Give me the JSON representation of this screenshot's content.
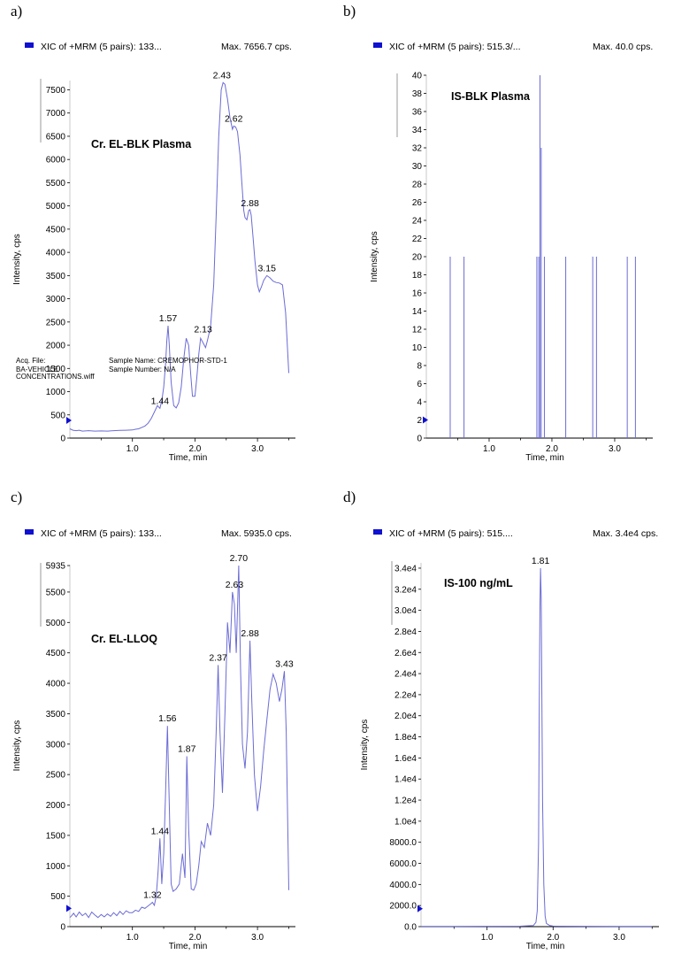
{
  "chart_data": [
    {
      "panel": "a)",
      "type": "line",
      "header_left": "XIC of +MRM (5 pairs): 133...",
      "header_right": "Max. 7656.7 cps.",
      "annotation": "Cr. EL-BLK Plasma",
      "xlabel": "Time, min",
      "ylabel": "Intensity, cps",
      "xlim": [
        0,
        3.55
      ],
      "ylim": [
        0,
        7700
      ],
      "xticks": [
        1.0,
        2.0,
        3.0
      ],
      "xtick_labels": [
        "1.0",
        "2.0",
        "3.0"
      ],
      "yticks": [
        0,
        500,
        1000,
        1500,
        2000,
        2500,
        3000,
        3500,
        4000,
        4500,
        5000,
        5500,
        6000,
        6500,
        7000,
        7500
      ],
      "ytick_labels": [
        "0",
        "500",
        "1000",
        "1500",
        "2000",
        "2500",
        "3000",
        "3500",
        "4000",
        "4500",
        "5000",
        "5500",
        "6000",
        "6500",
        "7000",
        "7500"
      ],
      "color": "#6b6bd6",
      "marker_y": 380,
      "metadata": [
        "Acq. File:",
        "BA-VEHICLE",
        "CONCENTRATIONS.wiff",
        "Sample Name: CREMOPHOR-STD-1",
        "Sample Number: N/A"
      ],
      "peak_labels": [
        {
          "x": 1.44,
          "y": 640,
          "label": "1.44"
        },
        {
          "x": 1.57,
          "y": 2420,
          "label": "1.57"
        },
        {
          "x": 2.13,
          "y": 2180,
          "label": "2.13"
        },
        {
          "x": 2.43,
          "y": 7657,
          "label": "2.43"
        },
        {
          "x": 2.62,
          "y": 6720,
          "label": "2.62"
        },
        {
          "x": 2.88,
          "y": 4900,
          "label": "2.88"
        },
        {
          "x": 3.15,
          "y": 3500,
          "label": "3.15"
        }
      ],
      "series": [
        {
          "x": [
            0.0,
            0.05,
            0.1,
            0.15,
            0.2,
            0.3,
            0.4,
            0.5,
            0.6,
            0.7,
            0.8,
            0.9,
            1.0,
            1.05,
            1.1,
            1.15,
            1.2,
            1.25,
            1.3,
            1.35,
            1.4,
            1.44,
            1.47,
            1.5,
            1.53,
            1.55,
            1.57,
            1.59,
            1.62,
            1.66,
            1.7,
            1.74,
            1.78,
            1.82,
            1.86,
            1.9,
            1.93,
            1.96,
            2.0,
            2.03,
            2.06,
            2.09,
            2.13,
            2.17,
            2.2,
            2.25,
            2.3,
            2.34,
            2.38,
            2.42,
            2.45,
            2.48,
            2.52,
            2.56,
            2.6,
            2.62,
            2.65,
            2.68,
            2.72,
            2.75,
            2.78,
            2.8,
            2.83,
            2.86,
            2.88,
            2.9,
            2.93,
            2.96,
            3.0,
            3.03,
            3.06,
            3.1,
            3.15,
            3.2,
            3.25,
            3.3,
            3.35,
            3.4,
            3.45,
            3.5
          ],
          "y": [
            200,
            170,
            160,
            170,
            150,
            160,
            150,
            155,
            150,
            160,
            165,
            170,
            175,
            190,
            200,
            230,
            260,
            320,
            420,
            560,
            700,
            640,
            800,
            1100,
            1600,
            2100,
            2420,
            2000,
            1200,
            700,
            650,
            760,
            1100,
            1700,
            2150,
            2000,
            1400,
            900,
            900,
            1300,
            1800,
            2150,
            2050,
            1950,
            2100,
            2400,
            3300,
            4800,
            6500,
            7500,
            7657,
            7620,
            7300,
            6900,
            6650,
            6720,
            6700,
            6600,
            6100,
            5500,
            4900,
            4750,
            4700,
            4900,
            4920,
            4800,
            4300,
            3800,
            3300,
            3150,
            3250,
            3400,
            3500,
            3450,
            3380,
            3350,
            3340,
            3300,
            2700,
            1400
          ]
        }
      ]
    },
    {
      "panel": "b)",
      "type": "line",
      "header_left": "XIC of +MRM (5 pairs): 515.3/...",
      "header_right": "Max. 40.0 cps.",
      "annotation": "IS-BLK Plasma",
      "xlabel": "Time, min",
      "ylabel": "Intensity, cps",
      "xlim": [
        0,
        3.55
      ],
      "ylim": [
        0,
        40
      ],
      "xticks": [
        1.0,
        2.0,
        3.0
      ],
      "xtick_labels": [
        "1.0",
        "2.0",
        "3.0"
      ],
      "yticks": [
        0,
        2,
        4,
        6,
        8,
        10,
        12,
        14,
        16,
        18,
        20,
        22,
        24,
        26,
        28,
        30,
        32,
        34,
        36,
        38,
        40
      ],
      "ytick_labels": [
        "0",
        "2",
        "4",
        "6",
        "8",
        "10",
        "12",
        "14",
        "16",
        "18",
        "20",
        "22",
        "24",
        "26",
        "28",
        "30",
        "32",
        "34",
        "36",
        "38",
        "40"
      ],
      "color": "#6b6bd6",
      "marker_y": 2,
      "metadata": [],
      "peak_labels": [],
      "spikes": [
        {
          "x": 0.38,
          "y": 20
        },
        {
          "x": 0.6,
          "y": 20
        },
        {
          "x": 1.76,
          "y": 20
        },
        {
          "x": 1.79,
          "y": 20
        },
        {
          "x": 1.81,
          "y": 40
        },
        {
          "x": 1.83,
          "y": 32
        },
        {
          "x": 1.88,
          "y": 20
        },
        {
          "x": 2.22,
          "y": 20
        },
        {
          "x": 2.65,
          "y": 20
        },
        {
          "x": 2.71,
          "y": 20
        },
        {
          "x": 3.2,
          "y": 20
        },
        {
          "x": 3.33,
          "y": 20
        }
      ]
    },
    {
      "panel": "c)",
      "type": "line",
      "header_left": "XIC of +MRM (5 pairs): 133...",
      "header_right": "Max. 5935.0 cps.",
      "annotation": "Cr. EL-LLOQ",
      "xlabel": "Time, min",
      "ylabel": "Intensity, cps",
      "xlim": [
        0,
        3.55
      ],
      "ylim": [
        0,
        5950
      ],
      "xticks": [
        1.0,
        2.0,
        3.0
      ],
      "xtick_labels": [
        "1.0",
        "2.0",
        "3.0"
      ],
      "yticks": [
        0,
        500,
        1000,
        1500,
        2000,
        2500,
        3000,
        3500,
        4000,
        4500,
        5000,
        5500,
        5935
      ],
      "ytick_labels": [
        "0",
        "500",
        "1000",
        "1500",
        "2000",
        "2500",
        "3000",
        "3500",
        "4000",
        "4500",
        "5000",
        "5500",
        "5935"
      ],
      "color": "#6b6bd6",
      "marker_y": 300,
      "metadata": [],
      "peak_labels": [
        {
          "x": 1.32,
          "y": 400,
          "label": "1.32"
        },
        {
          "x": 1.44,
          "y": 1450,
          "label": "1.44"
        },
        {
          "x": 1.56,
          "y": 3300,
          "label": "1.56"
        },
        {
          "x": 1.87,
          "y": 2800,
          "label": "1.87"
        },
        {
          "x": 2.37,
          "y": 4300,
          "label": "2.37"
        },
        {
          "x": 2.63,
          "y": 5500,
          "label": "2.63"
        },
        {
          "x": 2.7,
          "y": 5935,
          "label": "2.70"
        },
        {
          "x": 2.88,
          "y": 4700,
          "label": "2.88"
        },
        {
          "x": 3.43,
          "y": 4200,
          "label": "3.43"
        }
      ],
      "series": [
        {
          "x": [
            0.0,
            0.03,
            0.06,
            0.1,
            0.15,
            0.2,
            0.25,
            0.3,
            0.35,
            0.4,
            0.45,
            0.5,
            0.55,
            0.6,
            0.65,
            0.7,
            0.75,
            0.8,
            0.85,
            0.9,
            0.95,
            1.0,
            1.05,
            1.1,
            1.15,
            1.2,
            1.25,
            1.3,
            1.32,
            1.35,
            1.38,
            1.41,
            1.44,
            1.47,
            1.5,
            1.53,
            1.56,
            1.59,
            1.62,
            1.65,
            1.7,
            1.75,
            1.8,
            1.84,
            1.87,
            1.9,
            1.94,
            1.98,
            2.02,
            2.06,
            2.1,
            2.15,
            2.2,
            2.25,
            2.3,
            2.34,
            2.37,
            2.4,
            2.44,
            2.48,
            2.52,
            2.56,
            2.6,
            2.63,
            2.66,
            2.7,
            2.73,
            2.76,
            2.8,
            2.84,
            2.88,
            2.91,
            2.95,
            3.0,
            3.05,
            3.1,
            3.15,
            3.2,
            3.25,
            3.3,
            3.35,
            3.39,
            3.43,
            3.46,
            3.5
          ],
          "y": [
            150,
            180,
            220,
            160,
            240,
            180,
            220,
            150,
            240,
            190,
            150,
            200,
            160,
            210,
            170,
            230,
            180,
            250,
            200,
            260,
            230,
            230,
            270,
            250,
            320,
            300,
            340,
            380,
            400,
            350,
            500,
            900,
            1450,
            700,
            1200,
            2200,
            3300,
            2000,
            700,
            580,
            620,
            700,
            1200,
            800,
            2800,
            1600,
            620,
            600,
            700,
            1000,
            1400,
            1300,
            1700,
            1500,
            2000,
            3200,
            4300,
            3200,
            2200,
            3500,
            5000,
            4500,
            5500,
            5300,
            4500,
            5935,
            4200,
            3000,
            2600,
            3200,
            4700,
            3700,
            2500,
            1900,
            2300,
            2900,
            3400,
            3900,
            4150,
            4000,
            3700,
            3900,
            4200,
            3200,
            600
          ]
        }
      ]
    },
    {
      "panel": "d)",
      "type": "line",
      "header_left": "XIC of +MRM (5 pairs): 515....",
      "header_right": "Max. 3.4e4 cps.",
      "annotation": "IS-100 ng/mL",
      "xlabel": "Time, min",
      "ylabel": "Intensity, cps",
      "xlim": [
        0,
        3.55
      ],
      "ylim": [
        0,
        34500
      ],
      "xticks": [
        1.0,
        2.0,
        3.0
      ],
      "xtick_labels": [
        "1.0",
        "2.0",
        "3.0"
      ],
      "yticks": [
        0,
        2000,
        4000,
        6000,
        8000,
        10000,
        12000,
        14000,
        16000,
        18000,
        20000,
        22000,
        24000,
        26000,
        28000,
        30000,
        32000,
        34000
      ],
      "ytick_labels": [
        "0.0",
        "2000.0",
        "4000.0",
        "6000.0",
        "8000.0",
        "1.0e4",
        "1.2e4",
        "1.4e4",
        "1.6e4",
        "1.8e4",
        "2.0e4",
        "2.2e4",
        "2.4e4",
        "2.6e4",
        "2.8e4",
        "3.0e4",
        "3.2e4",
        "3.4e4"
      ],
      "color": "#6b6bd6",
      "marker_y": 1700,
      "metadata": [],
      "peak_labels": [
        {
          "x": 1.81,
          "y": 34000,
          "label": "1.81"
        }
      ],
      "series": [
        {
          "x": [
            0.0,
            0.5,
            1.0,
            1.5,
            1.7,
            1.74,
            1.76,
            1.78,
            1.79,
            1.8,
            1.81,
            1.82,
            1.83,
            1.84,
            1.86,
            1.88,
            1.9,
            1.95,
            2.0,
            2.5,
            3.0,
            3.5
          ],
          "y": [
            20,
            20,
            30,
            40,
            100,
            400,
            1500,
            8000,
            20000,
            30000,
            34000,
            31000,
            22000,
            12000,
            4000,
            1000,
            300,
            100,
            50,
            30,
            20,
            20
          ]
        }
      ]
    }
  ]
}
